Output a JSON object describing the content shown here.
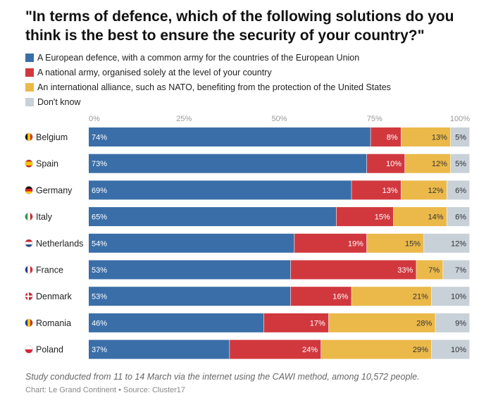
{
  "chart_data": {
    "type": "bar",
    "stacked": true,
    "orientation": "horizontal",
    "title": "\"In terms of defence, which of the following solutions do you think is the best to ensure the security of your country?\"",
    "categories": [
      "Belgium",
      "Spain",
      "Germany",
      "Italy",
      "Netherlands",
      "France",
      "Denmark",
      "Romania",
      "Poland"
    ],
    "flag_icons": [
      "belgium-flag-icon",
      "spain-flag-icon",
      "germany-flag-icon",
      "italy-flag-icon",
      "netherlands-flag-icon",
      "france-flag-icon",
      "denmark-flag-icon",
      "romania-flag-icon",
      "poland-flag-icon"
    ],
    "series": [
      {
        "name": "A European defence, with a common army for the countries of the European Union",
        "color": "#3a6ea8",
        "values": [
          74,
          73,
          69,
          65,
          54,
          53,
          53,
          46,
          37
        ]
      },
      {
        "name": "A national army, organised solely at the level of your country",
        "color": "#d0383e",
        "values": [
          8,
          10,
          13,
          15,
          19,
          33,
          16,
          17,
          24
        ]
      },
      {
        "name": "An international alliance, such as NATO, benefiting from the protection of the United States",
        "color": "#ebb94a",
        "values": [
          13,
          12,
          12,
          14,
          15,
          7,
          21,
          28,
          29
        ]
      },
      {
        "name": "Don't know",
        "color": "#c8d0d8",
        "values": [
          5,
          5,
          6,
          6,
          12,
          7,
          10,
          9,
          10
        ]
      }
    ],
    "xlim": [
      0,
      100
    ],
    "xticks": [
      0,
      25,
      50,
      75,
      100
    ],
    "xtick_labels": [
      "0%",
      "25%",
      "50%",
      "75%",
      "100%"
    ],
    "legend_position": "top-left",
    "grid": false
  },
  "footer": {
    "note": "Study conducted from 11 to 14 March via the internet using the CAWI method, among 10,572 people.",
    "credit": "Chart: Le Grand Continent • Source: Cluster17"
  }
}
